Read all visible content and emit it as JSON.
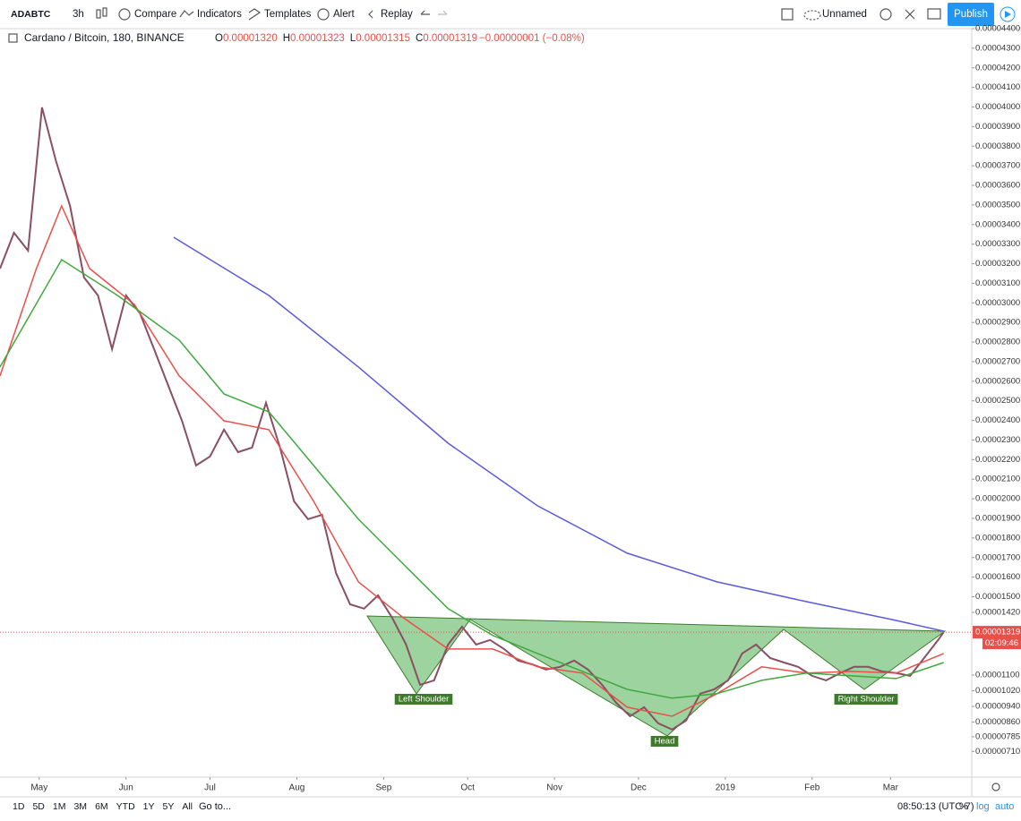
{
  "toolbar": {
    "symbol": "ADABTC",
    "interval": "3h",
    "compare": "Compare",
    "indicators": "Indicators",
    "templates": "Templates",
    "alert": "Alert",
    "replay": "Replay",
    "layout_name": "Unnamed",
    "publish": "Publish"
  },
  "legend": {
    "title": "Cardano / Bitcoin, 180, BINANCE",
    "ohlc": [
      {
        "key": "O",
        "value": "0.00001320"
      },
      {
        "key": "H",
        "value": "0.00001323"
      },
      {
        "key": "L",
        "value": "0.00001315"
      },
      {
        "key": "C",
        "value": "0.00001319"
      }
    ],
    "change": "−0.00000001 (−0.08%)"
  },
  "chart_data": {
    "type": "line",
    "log_scale": false,
    "grid": false,
    "xlim": [
      0,
      347
    ],
    "xticks": [
      {
        "value": 14,
        "label": "May"
      },
      {
        "value": 45,
        "label": "Jun"
      },
      {
        "value": 75,
        "label": "Jul"
      },
      {
        "value": 106,
        "label": "Aug"
      },
      {
        "value": 137,
        "label": "Sep"
      },
      {
        "value": 167,
        "label": "Oct"
      },
      {
        "value": 198,
        "label": "Nov"
      },
      {
        "value": 228,
        "label": "Dec"
      },
      {
        "value": 259,
        "label": "2019"
      },
      {
        "value": 290,
        "label": "Feb"
      },
      {
        "value": 318,
        "label": "Mar"
      }
    ],
    "ylim": [
      5.79e-06,
      4.4e-05
    ],
    "yticks": [
      {
        "value": 4.4e-05,
        "label": "0.00004400"
      },
      {
        "value": 4.3e-05,
        "label": "0.00004300"
      },
      {
        "value": 4.2e-05,
        "label": "0.00004200"
      },
      {
        "value": 4.1e-05,
        "label": "0.00004100"
      },
      {
        "value": 4e-05,
        "label": "0.00004000"
      },
      {
        "value": 3.9e-05,
        "label": "0.00003900"
      },
      {
        "value": 3.8e-05,
        "label": "0.00003800"
      },
      {
        "value": 3.7e-05,
        "label": "0.00003700"
      },
      {
        "value": 3.6e-05,
        "label": "0.00003600"
      },
      {
        "value": 3.5e-05,
        "label": "0.00003500"
      },
      {
        "value": 3.4e-05,
        "label": "0.00003400"
      },
      {
        "value": 3.3e-05,
        "label": "0.00003300"
      },
      {
        "value": 3.2e-05,
        "label": "0.00003200"
      },
      {
        "value": 3.1e-05,
        "label": "0.00003100"
      },
      {
        "value": 3e-05,
        "label": "0.00003000"
      },
      {
        "value": 2.9e-05,
        "label": "0.00002900"
      },
      {
        "value": 2.8e-05,
        "label": "0.00002800"
      },
      {
        "value": 2.7e-05,
        "label": "0.00002700"
      },
      {
        "value": 2.6e-05,
        "label": "0.00002600"
      },
      {
        "value": 2.5e-05,
        "label": "0.00002500"
      },
      {
        "value": 2.4e-05,
        "label": "0.00002400"
      },
      {
        "value": 2.3e-05,
        "label": "0.00002300"
      },
      {
        "value": 2.2e-05,
        "label": "0.00002200"
      },
      {
        "value": 2.1e-05,
        "label": "0.00002100"
      },
      {
        "value": 2e-05,
        "label": "0.00002000"
      },
      {
        "value": 1.9e-05,
        "label": "0.00001900"
      },
      {
        "value": 1.8e-05,
        "label": "0.00001800"
      },
      {
        "value": 1.7e-05,
        "label": "0.00001700"
      },
      {
        "value": 1.6e-05,
        "label": "0.00001600"
      },
      {
        "value": 1.5e-05,
        "label": "0.00001500"
      },
      {
        "value": 1.42e-05,
        "label": "0.00001420"
      },
      {
        "value": 1.1e-05,
        "label": "0.00001100"
      },
      {
        "value": 1.02e-05,
        "label": "0.00001020"
      },
      {
        "value": 9.4e-06,
        "label": "0.00000940"
      },
      {
        "value": 8.6e-06,
        "label": "0.00000860"
      },
      {
        "value": 7.85e-06,
        "label": "0.00000785"
      },
      {
        "value": 7.1e-06,
        "label": "0.00000710"
      }
    ],
    "series": [
      {
        "color": "#8a4f63",
        "x": [
          0,
          5,
          10,
          15,
          20,
          25,
          30,
          35,
          40,
          45,
          50,
          55,
          60,
          65,
          70,
          75,
          80,
          85,
          90,
          95,
          100,
          105,
          110,
          115,
          120,
          125,
          130,
          135,
          140,
          145,
          150,
          155,
          160,
          165,
          170,
          175,
          180,
          185,
          190,
          195,
          200,
          205,
          210,
          215,
          220,
          225,
          230,
          235,
          240,
          245,
          250,
          255,
          260,
          265,
          270,
          275,
          280,
          285,
          290,
          295,
          300,
          305,
          310,
          315,
          320,
          325,
          330,
          335,
          337
        ],
        "values": [
          3.175e-05,
          3.358e-05,
          3.267e-05,
          3.998e-05,
          3.724e-05,
          3.495e-05,
          3.13e-05,
          3.038e-05,
          2.764e-05,
          3.038e-05,
          2.947e-05,
          2.764e-05,
          2.581e-05,
          2.398e-05,
          2.17e-05,
          2.216e-05,
          2.353e-05,
          2.238e-05,
          2.261e-05,
          2.49e-05,
          2.261e-05,
          1.987e-05,
          1.896e-05,
          1.918e-05,
          1.621e-05,
          1.461e-05,
          1.439e-05,
          1.507e-05,
          1.393e-05,
          1.256e-05,
          1.05e-05,
          1.073e-05,
          1.256e-05,
          1.347e-05,
          1.256e-05,
          1.279e-05,
          1.233e-05,
          1.174e-05,
          1.155e-05,
          1.128e-05,
          1.142e-05,
          1.174e-05,
          1.128e-05,
          1.05e-05,
          9.59e-06,
          8.9e-06,
          9.36e-06,
          8.54e-06,
          8.22e-06,
          8.68e-06,
          1.005e-05,
          1.027e-05,
          1.073e-05,
          1.21e-05,
          1.256e-05,
          1.187e-05,
          1.164e-05,
          1.142e-05,
          1.096e-05,
          1.073e-05,
          1.11e-05,
          1.142e-05,
          1.142e-05,
          1.119e-05,
          1.11e-05,
          1.096e-05,
          1.187e-05,
          1.279e-05,
          1.319e-05
        ]
      },
      {
        "color": "#e8504a",
        "x": [
          0,
          13,
          22,
          32,
          48,
          64,
          80,
          96,
          112,
          128,
          144,
          160,
          176,
          192,
          208,
          224,
          240,
          256,
          272,
          288,
          304,
          320,
          337
        ],
        "values": [
          2.627e-05,
          3.175e-05,
          3.495e-05,
          3.175e-05,
          2.992e-05,
          2.627e-05,
          2.398e-05,
          2.353e-05,
          1.987e-05,
          1.576e-05,
          1.393e-05,
          1.233e-05,
          1.233e-05,
          1.142e-05,
          1.11e-05,
          9.36e-06,
          8.9e-06,
          1.005e-05,
          1.142e-05,
          1.11e-05,
          1.119e-05,
          1.11e-05,
          1.21e-05
        ]
      },
      {
        "color": "#3fa83f",
        "x": [
          0,
          22,
          42,
          64,
          80,
          96,
          112,
          128,
          144,
          160,
          176,
          192,
          208,
          224,
          240,
          256,
          272,
          288,
          304,
          320,
          337
        ],
        "values": [
          2.673e-05,
          3.221e-05,
          3.038e-05,
          2.81e-05,
          2.535e-05,
          2.444e-05,
          2.17e-05,
          1.896e-05,
          1.667e-05,
          1.439e-05,
          1.302e-05,
          1.21e-05,
          1.119e-05,
          1.027e-05,
          9.82e-06,
          1.005e-05,
          1.073e-05,
          1.11e-05,
          1.096e-05,
          1.082e-05,
          1.164e-05
        ]
      },
      {
        "color": "#5b5bdc",
        "x": [
          62,
          96,
          128,
          160,
          192,
          224,
          256,
          288,
          320,
          337
        ],
        "values": [
          3.335e-05,
          3.038e-05,
          2.673e-05,
          2.284e-05,
          1.964e-05,
          1.722e-05,
          1.576e-05,
          1.475e-05,
          1.379e-05,
          1.324e-05
        ]
      }
    ],
    "price_tag": {
      "value": 1.319e-05,
      "label": "0.00001319"
    },
    "countdown": "02:09:46",
    "annotations": [
      "Left Shoulder",
      "Head",
      "Right Shoulder"
    ]
  },
  "bottom_bar": {
    "ranges": [
      "1D",
      "5D",
      "1M",
      "3M",
      "6M",
      "YTD",
      "1Y",
      "5Y",
      "All"
    ],
    "goto": "Go to...",
    "clock": "08:50:13 (UTC-7)",
    "percent": "%",
    "log": "log",
    "auto": "auto"
  }
}
